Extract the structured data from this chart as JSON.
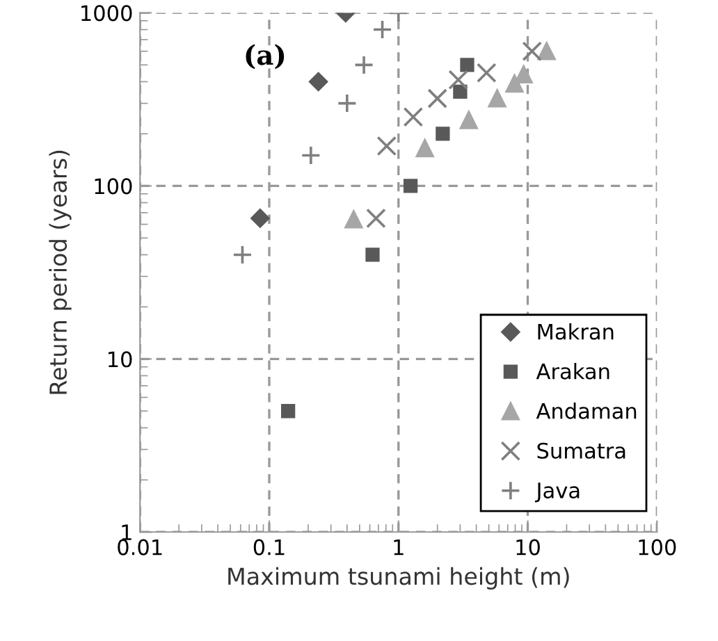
{
  "chart_data": {
    "type": "scatter",
    "xlabel": "Maximum tsunami height (m)",
    "ylabel": "Return period (years)",
    "annotations": [
      "(a)"
    ],
    "log": "xy",
    "xlim": [
      0.01,
      100
    ],
    "ylim": [
      1,
      1000
    ],
    "xticks": [
      0.01,
      0.1,
      1,
      10,
      100
    ],
    "yticks": [
      1,
      10,
      100,
      1000
    ],
    "grid": true,
    "legend": "bottom right",
    "series": [
      {
        "name": "Makran",
        "color": "#595959",
        "marker": "diamond",
        "x": [
          0.39,
          0.24,
          0.085
        ],
        "values": [
          1000,
          400,
          65
        ]
      },
      {
        "name": "Arakan",
        "color": "#595959",
        "marker": "square",
        "x": [
          3.4,
          3.0,
          2.2,
          1.24,
          0.63,
          0.14
        ],
        "values": [
          500,
          350,
          200,
          100,
          40,
          5
        ]
      },
      {
        "name": "Andaman",
        "color": "#a6a6a6",
        "marker": "triangle",
        "x": [
          14,
          9.3,
          7.9,
          5.8,
          3.5,
          1.6,
          0.45
        ],
        "values": [
          600,
          440,
          390,
          320,
          240,
          165,
          64
        ]
      },
      {
        "name": "Sumatra",
        "color": "#7f7f7f",
        "marker": "cross",
        "x": [
          10.8,
          4.8,
          2.9,
          2.0,
          1.3,
          0.81,
          0.67
        ],
        "values": [
          600,
          450,
          410,
          320,
          250,
          170,
          65
        ]
      },
      {
        "name": "Java",
        "color": "#7f7f7f",
        "marker": "plus",
        "x": [
          1.0,
          0.75,
          0.54,
          0.4,
          0.21,
          0.062
        ],
        "values": [
          1000,
          800,
          500,
          300,
          150,
          40
        ]
      }
    ]
  }
}
